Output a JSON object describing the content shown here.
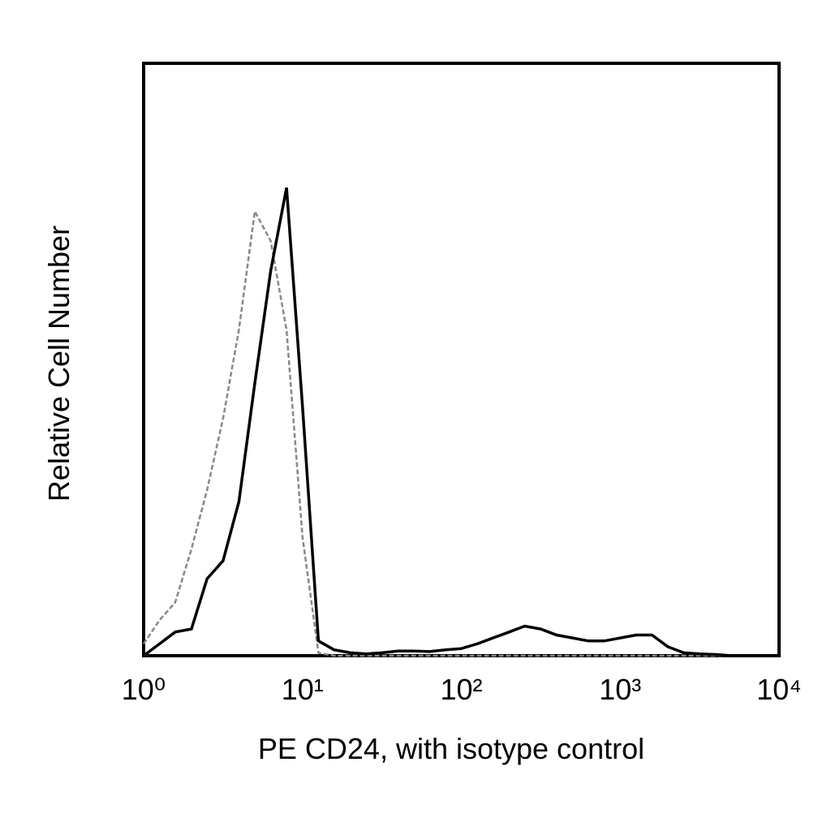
{
  "chart_data": {
    "type": "line",
    "x_label": "PE CD24, with isotype control",
    "y_label": "Relative Cell Number",
    "xscale": "log",
    "xlim": [
      1,
      10000
    ],
    "xticks": [
      {
        "value": 1,
        "label": "10⁰"
      },
      {
        "value": 10,
        "label": "10¹"
      },
      {
        "value": 100,
        "label": "10²"
      },
      {
        "value": 1000,
        "label": "10³"
      },
      {
        "value": 10000,
        "label": "10⁴"
      }
    ],
    "ylim": [
      0,
      100
    ],
    "grid": false,
    "x": [
      1,
      1.26,
      1.58,
      2,
      2.51,
      3.16,
      3.98,
      5.01,
      6.31,
      7.94,
      10,
      12.6,
      15.8,
      20,
      25.1,
      31.6,
      39.8,
      50.1,
      63.1,
      79.4,
      100,
      126,
      158,
      200,
      251,
      316,
      398,
      501,
      631,
      794,
      1000,
      1259,
      1585,
      1995,
      2512,
      3162,
      3981,
      5012,
      6310,
      7943,
      10000
    ],
    "series": [
      {
        "color": "#888888",
        "dashed": true,
        "values": [
          2,
          6,
          9,
          18,
          28,
          40,
          55,
          75,
          70,
          55,
          20,
          0.5,
          0,
          0,
          0,
          0,
          0,
          0,
          0,
          0,
          0,
          0,
          0,
          0,
          0,
          0,
          0,
          0,
          0,
          0,
          0,
          0,
          0,
          0,
          0,
          0,
          0,
          0,
          0,
          0,
          0
        ]
      },
      {
        "color": "#000000",
        "dashed": false,
        "values": [
          0,
          2,
          4,
          4.5,
          13,
          16,
          26,
          46,
          65,
          79,
          42,
          2.5,
          1,
          0.5,
          0.3,
          0.5,
          0.8,
          0.8,
          0.7,
          1,
          1.2,
          2,
          3,
          4,
          5,
          4.5,
          3.5,
          3,
          2.5,
          2.5,
          3,
          3.5,
          3.5,
          1.5,
          0.5,
          0.3,
          0.2,
          0,
          0,
          0,
          0
        ]
      }
    ]
  }
}
